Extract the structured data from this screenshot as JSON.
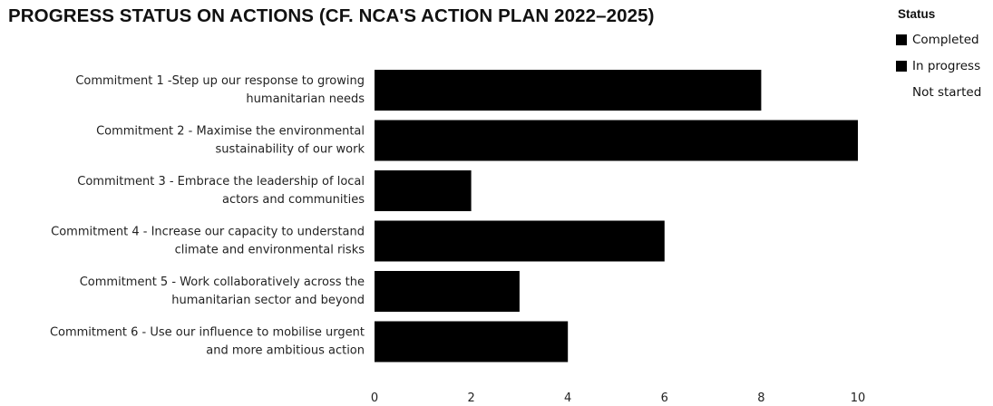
{
  "chart_data": {
    "type": "bar",
    "orientation": "horizontal",
    "stacked": true,
    "title": "PROGRESS STATUS ON ACTIONS (CF. NCA'S ACTION PLAN 2022–2025)",
    "categories": [
      [
        "Commitment 1 -Step up our response to growing",
        "humanitarian needs"
      ],
      [
        "Commitment 2 -  Maximise the environmental",
        "sustainability of our work"
      ],
      [
        "Commitment 3 - Embrace the leadership of local",
        "actors and communities"
      ],
      [
        "Commitment 4 - Increase our capacity to understand",
        "climate and environmental risks"
      ],
      [
        "Commitment 5 - Work collaboratively across the",
        "humanitarian sector and beyond"
      ],
      [
        "Commitment 6 - Use our influence to mobilise urgent",
        "and more ambitious action"
      ]
    ],
    "series": [
      {
        "name": "Completed",
        "color": "#000000",
        "values": [
          8,
          10,
          2,
          6,
          3,
          4
        ]
      },
      {
        "name": "In progress",
        "color": "#000000",
        "values": [
          0,
          0,
          0,
          0,
          0,
          0
        ]
      },
      {
        "name": "Not started",
        "color": "#ffffff",
        "values": [
          0,
          0,
          0,
          0,
          0,
          0
        ]
      }
    ],
    "xlim": [
      0,
      10
    ],
    "xticks": [
      0,
      2,
      4,
      6,
      8,
      10
    ],
    "grid": false,
    "legend_title": "Status",
    "legend_position": "top-right"
  }
}
